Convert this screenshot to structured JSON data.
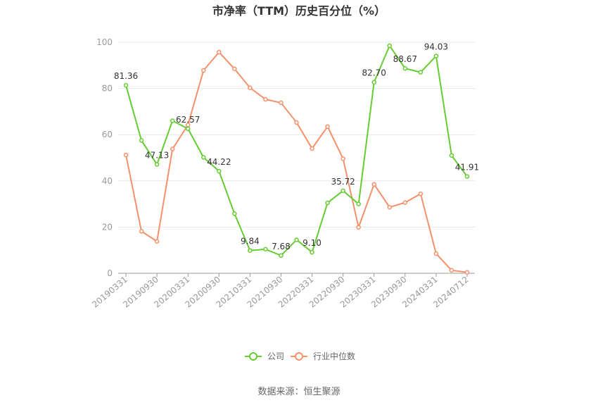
{
  "chart_data": {
    "type": "line",
    "title": "市净率（TTM）历史百分位（%）",
    "xlabel": "",
    "ylabel": "",
    "ylim": [
      0,
      100
    ],
    "yticks": [
      0,
      20,
      40,
      60,
      80,
      100
    ],
    "x": [
      "20190331",
      "20190630",
      "20190930",
      "20191231",
      "20200331",
      "20200630",
      "20200930",
      "20201231",
      "20210331",
      "20210630",
      "20210930",
      "20211231",
      "20220331",
      "20220630",
      "20220930",
      "20221231",
      "20230331",
      "20230630",
      "20230930",
      "20231231",
      "20240331",
      "20240630",
      "20240712"
    ],
    "x_tick_labels": [
      "20190331",
      "20190930",
      "20200331",
      "20200930",
      "20210331",
      "20210930",
      "20220331",
      "20220930",
      "20230331",
      "20230930",
      "20240331",
      "20240712"
    ],
    "series": [
      {
        "name": "公司",
        "color": "#66cc33",
        "values": [
          81.36,
          57.5,
          47.13,
          66.0,
          62.57,
          50.2,
          44.22,
          25.8,
          9.84,
          10.4,
          7.68,
          14.5,
          9.1,
          30.5,
          35.72,
          30.0,
          82.7,
          98.5,
          88.67,
          87.0,
          94.03,
          51.0,
          41.91
        ],
        "labels": {
          "0": "81.36",
          "2": "47.13",
          "4": "62.57",
          "6": "44.22",
          "8": "9.84",
          "10": "7.68",
          "12": "9.10",
          "14": "35.72",
          "16": "82.70",
          "18": "88.67",
          "20": "94.03",
          "22": "41.91"
        }
      },
      {
        "name": "行业中位数",
        "color": "#f4916b",
        "values": [
          51.2,
          18.2,
          13.8,
          53.8,
          64.2,
          87.8,
          95.7,
          88.5,
          80.3,
          75.3,
          73.8,
          65.3,
          54.0,
          63.5,
          49.6,
          19.9,
          38.5,
          28.6,
          30.6,
          34.4,
          8.5,
          1.3,
          0.4
        ]
      }
    ],
    "grid": true,
    "legend_position": "bottom-center"
  },
  "source": "数据来源：恒生聚源"
}
